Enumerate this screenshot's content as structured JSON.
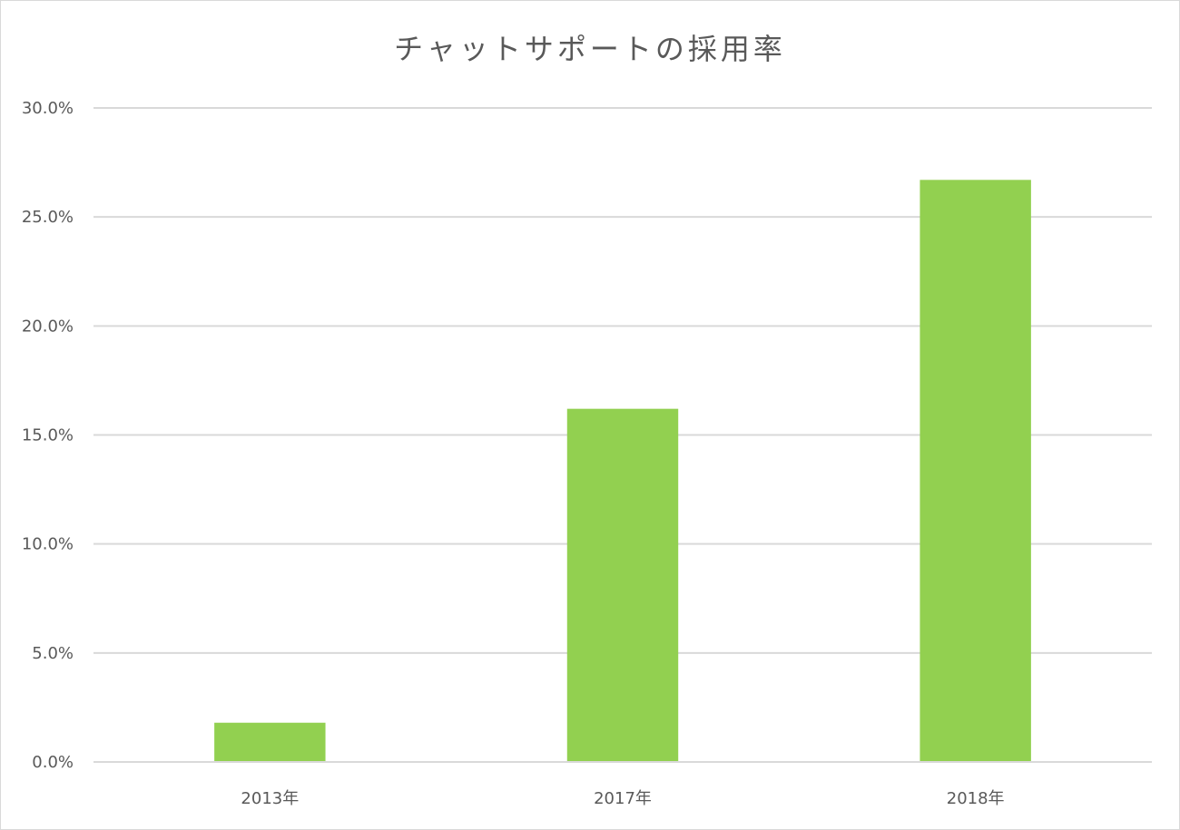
{
  "chart_data": {
    "type": "bar",
    "title": "チャットサポートの採用率",
    "categories": [
      "2013年",
      "2017年",
      "2018年"
    ],
    "values": [
      0.018,
      0.162,
      0.267
    ],
    "ylim": [
      0,
      0.3
    ],
    "ytick_step": 0.05,
    "ytick_labels": [
      "0.0%",
      "5.0%",
      "10.0%",
      "15.0%",
      "20.0%",
      "25.0%",
      "30.0%"
    ],
    "xlabel": "",
    "ylabel": "",
    "grid": true,
    "legend": "none",
    "bar_color": "#92d050",
    "grid_color": "#d9d9d9",
    "text_color": "#595959"
  }
}
